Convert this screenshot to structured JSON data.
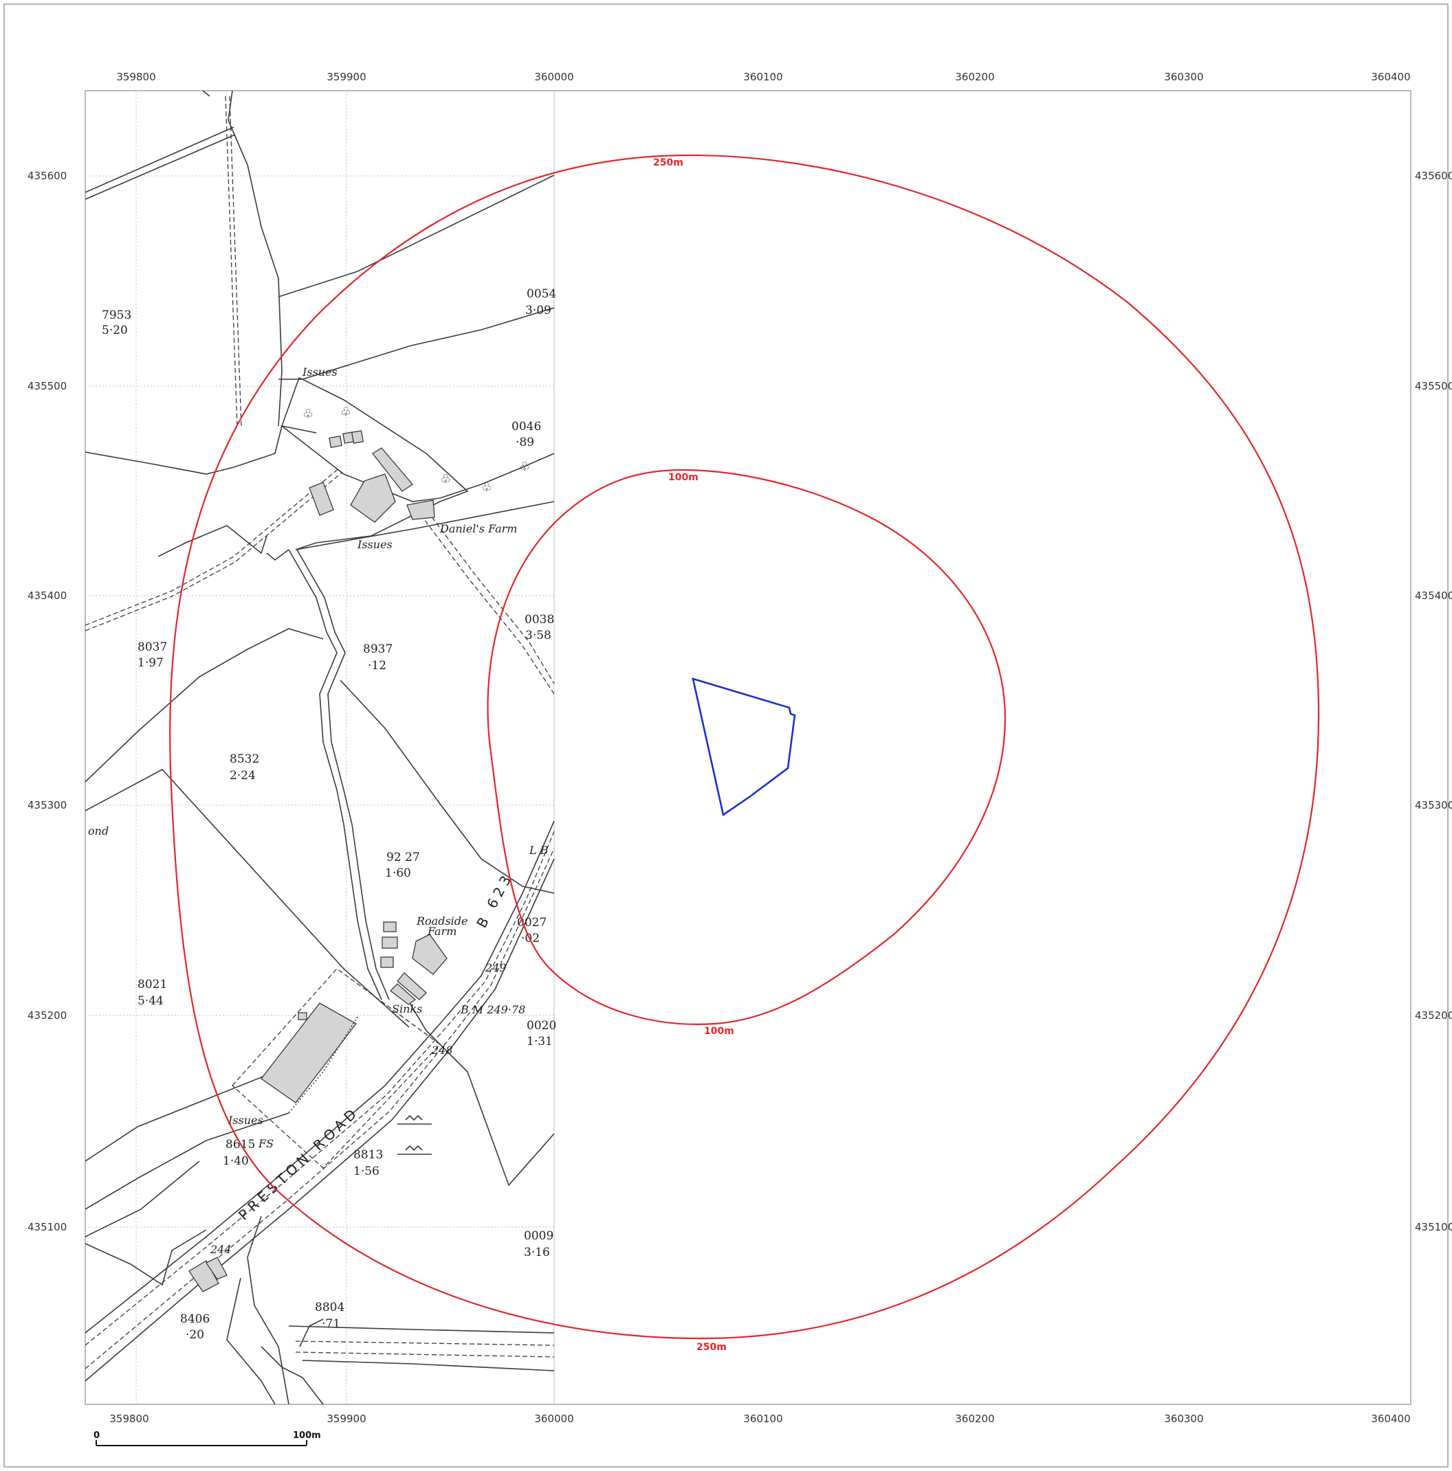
{
  "grid": {
    "easting_labels": [
      "359800",
      "359900",
      "360000",
      "360100",
      "360200",
      "360300",
      "360400"
    ],
    "northing_labels": [
      "435600",
      "435500",
      "435400",
      "435300",
      "435200",
      "435100"
    ]
  },
  "buffers": {
    "outer_label": "250m",
    "inner_label": "100m",
    "color": "#e3262b"
  },
  "site": {
    "color": "#1a2fd0"
  },
  "map_labels": {
    "parcels": [
      {
        "id": "7953",
        "area": "5·20"
      },
      {
        "id": "0054",
        "area": "3·09"
      },
      {
        "id": "0046",
        "area": "·89"
      },
      {
        "id": "0038",
        "area": "3·58"
      },
      {
        "id": "8037",
        "area": "1·97"
      },
      {
        "id": "8937",
        "area": "·12"
      },
      {
        "id": "8532",
        "area": "2·24"
      },
      {
        "id": "92 27",
        "area": "1·60"
      },
      {
        "id": "0027",
        "area": "·02"
      },
      {
        "id": "8021",
        "area": "5·44"
      },
      {
        "id": "0020",
        "area": "1·31"
      },
      {
        "id": "8615",
        "area": "1·40"
      },
      {
        "id": "8813",
        "area": "1·56"
      },
      {
        "id": "0009",
        "area": "3·16"
      },
      {
        "id": "8804",
        "area": "·71"
      },
      {
        "id": "8406",
        "area": "·20"
      }
    ],
    "places": {
      "issues_north": "Issues",
      "issues_mid": "Issues",
      "issues_south": "Issues",
      "daniels_farm": "Daniel's Farm",
      "roadside": "Roadside",
      "farm": "Farm",
      "sinks": "Sinks",
      "pond": "ond",
      "fs": "FS",
      "lb": "L B"
    },
    "spot_heights": {
      "h249": "249",
      "bm": "B M 249·78",
      "h248": "248",
      "h244": "244"
    },
    "roads": {
      "b_road": "B 623",
      "preston_road": "PRESTON ROAD"
    }
  },
  "scale_bar": {
    "start_label": "0",
    "end_label": "100m"
  }
}
